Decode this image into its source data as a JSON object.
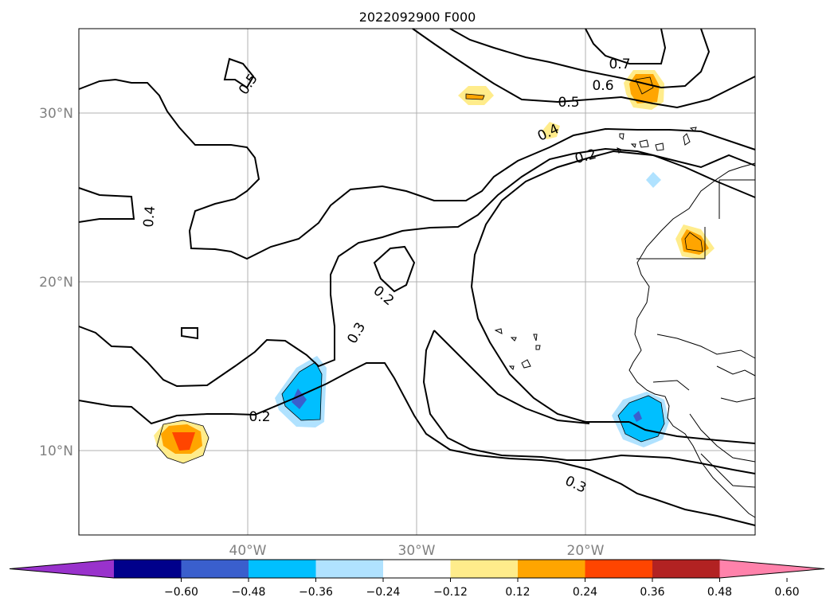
{
  "title": "2022092900 F000",
  "lat_labels": [
    "30°N",
    "20°N",
    "10°N"
  ],
  "lon_labels": [
    "40°W",
    "30°W",
    "20°W"
  ],
  "contour_labels": [
    "0.7",
    "0.6",
    "0.5",
    "0.5",
    "0.4",
    "0.4",
    "0.2",
    "0.2",
    "0.3",
    "0.2",
    "0.3"
  ],
  "colorbar": {
    "ticks": [
      "−0.60",
      "−0.48",
      "−0.36",
      "−0.24",
      "−0.12",
      "0.12",
      "0.24",
      "0.36",
      "0.48",
      "0.60"
    ],
    "colors": [
      "#9932cc",
      "#00008b",
      "#3a5fcd",
      "#00bfff",
      "#b0e2ff",
      "#ffffff",
      "#ffec8b",
      "#ffa500",
      "#ff4500",
      "#b22222",
      "#ff82ab"
    ]
  }
}
